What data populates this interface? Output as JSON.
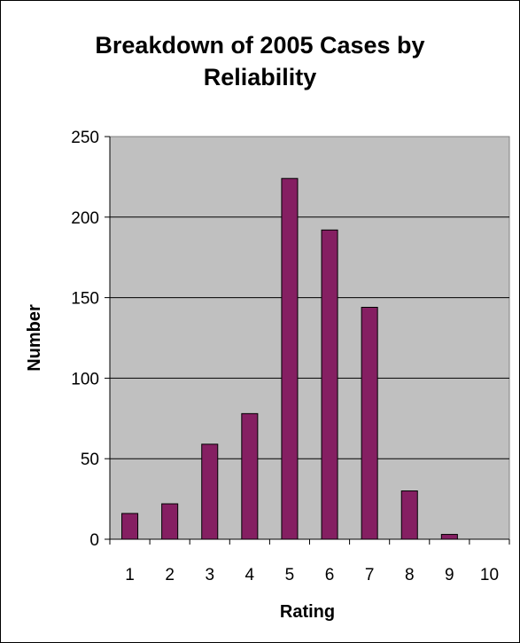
{
  "chart_data": {
    "type": "bar",
    "title": "Breakdown of 2005 Cases by\nReliability",
    "xlabel": "Rating",
    "ylabel": "Number",
    "categories": [
      "1",
      "2",
      "3",
      "4",
      "5",
      "6",
      "7",
      "8",
      "9",
      "10"
    ],
    "values": [
      16,
      22,
      59,
      78,
      224,
      192,
      144,
      30,
      3,
      0
    ],
    "ylim": [
      0,
      250
    ],
    "yticks": [
      "0",
      "50",
      "100",
      "150",
      "200",
      "250"
    ],
    "grid": true,
    "legend": "none",
    "colors": {
      "bar": "#851f62",
      "plot_background": "#c0c0c0",
      "gridline": "#000000"
    }
  }
}
